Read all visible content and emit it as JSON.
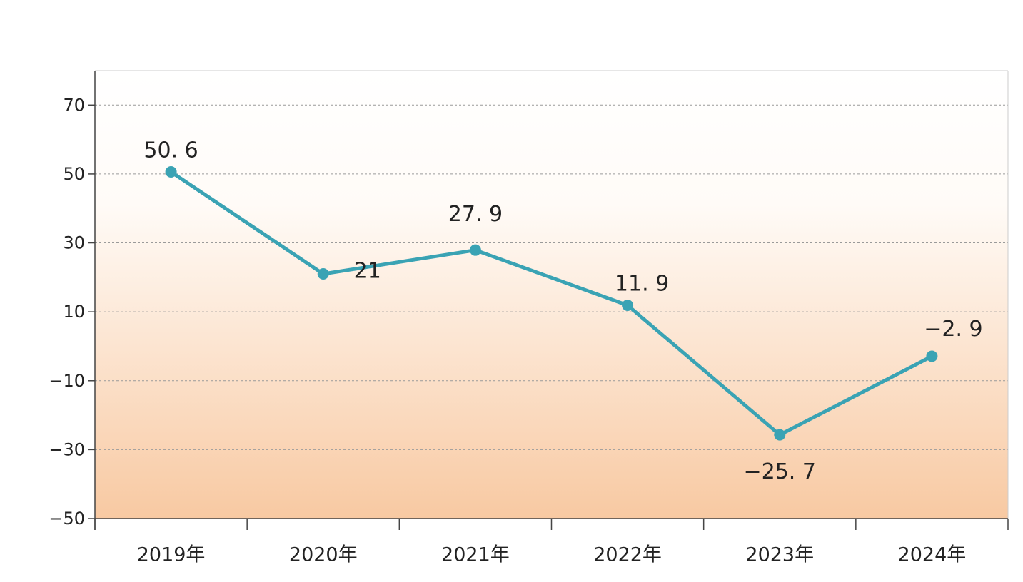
{
  "chart_data": {
    "type": "line",
    "categories": [
      "2019年",
      "2020年",
      "2021年",
      "2022年",
      "2023年",
      "2024年"
    ],
    "values": [
      50.6,
      21,
      27.9,
      11.9,
      -25.7,
      -2.9
    ],
    "data_labels": [
      "50. 6",
      "21",
      "27. 9",
      "11. 9",
      "−25. 7",
      "−2. 9"
    ],
    "y_ticks": [
      70,
      50,
      30,
      10,
      -10,
      -30,
      -50
    ],
    "y_tick_labels": [
      "70",
      "50",
      "30",
      "10",
      "−10",
      "−30",
      "−50"
    ],
    "ylim": [
      -50,
      80
    ],
    "title": "",
    "xlabel": "",
    "ylabel": "",
    "grid": true,
    "gridline_style": "dashed",
    "legend": "none",
    "colors": {
      "line": "#3aa3b4",
      "marker": "#3aa3b4",
      "gradient_top": "#ffffff",
      "gradient_bottom": "#f8c9a2",
      "gridline": "#9a9a9a",
      "axis": "#444444"
    }
  }
}
